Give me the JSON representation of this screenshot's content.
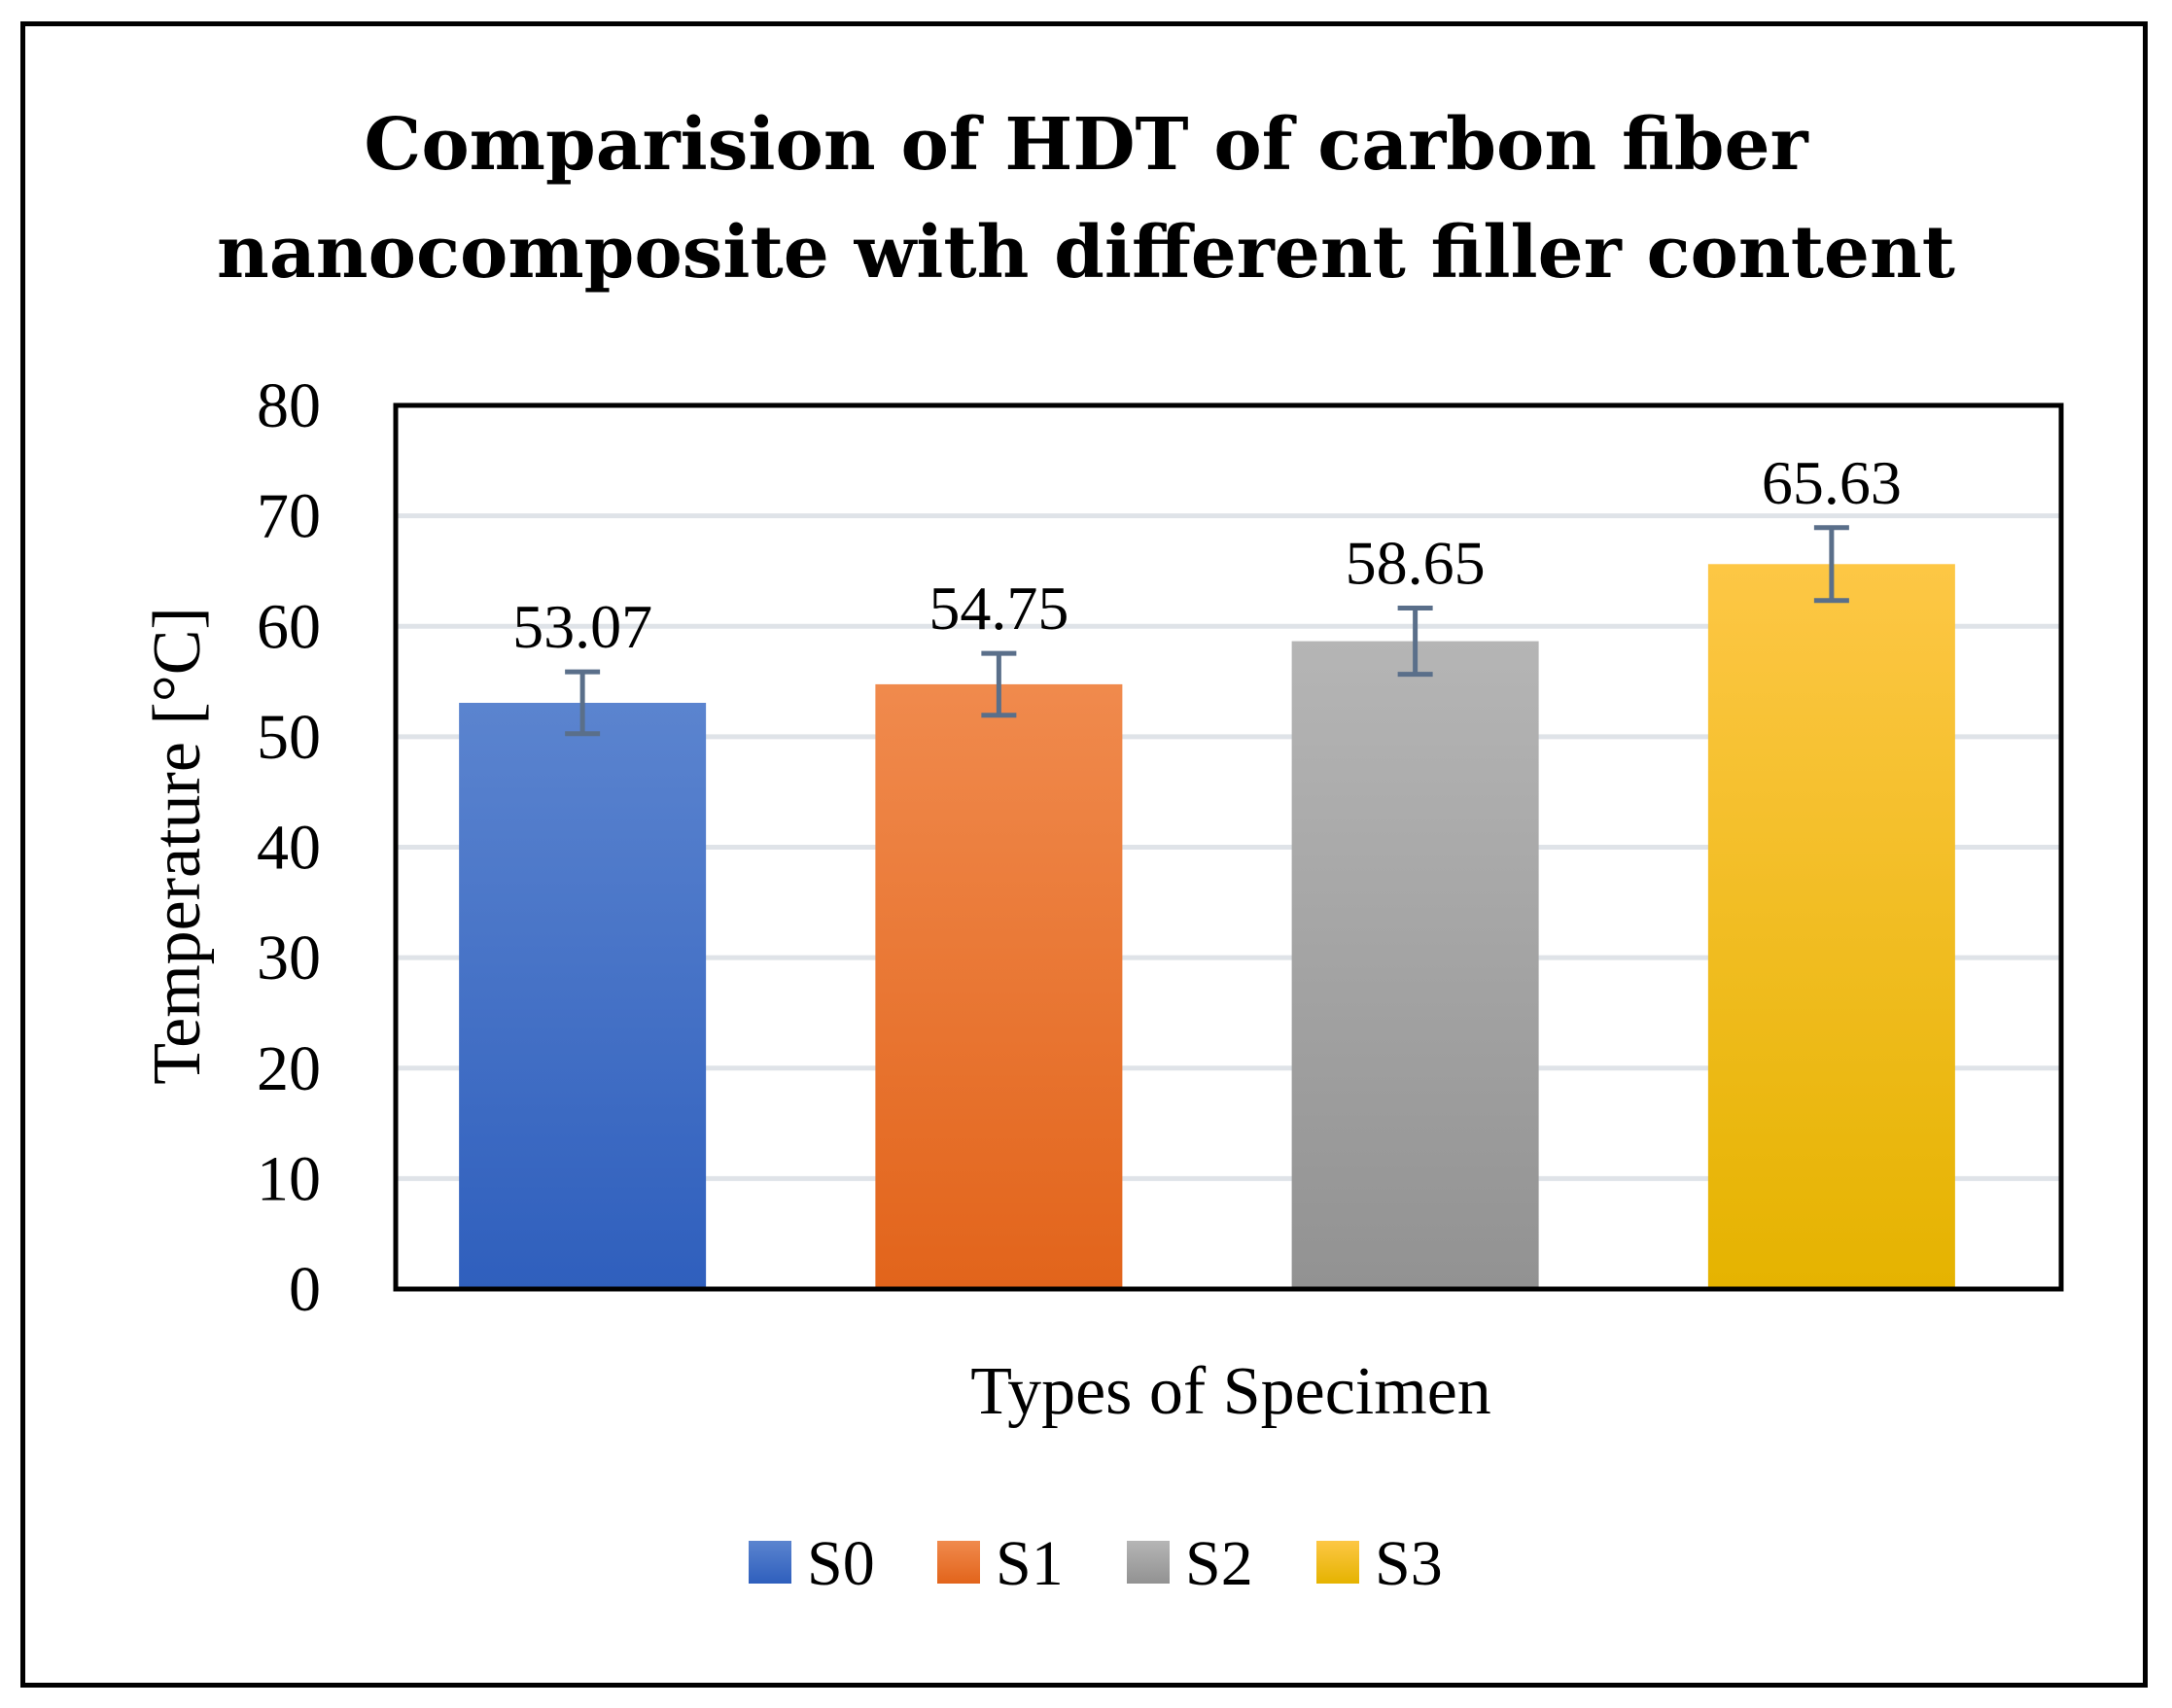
{
  "chart_data": {
    "type": "bar",
    "title": [
      "Comparision of HDT of carbon fiber",
      "nanocomposite with different filler content"
    ],
    "categories": [
      "S0",
      "S1",
      "S2",
      "S3"
    ],
    "values": [
      53.07,
      54.75,
      58.65,
      65.63
    ],
    "error": [
      2.8,
      2.8,
      3.0,
      3.3
    ],
    "data_labels": [
      "53.07",
      "54.75",
      "58.65",
      "65.63"
    ],
    "xlabel": "Types of Specimen",
    "ylabel": "Temperature [°C]",
    "ylim": [
      0,
      80
    ],
    "yticks": [
      "0",
      "10",
      "20",
      "30",
      "40",
      "50",
      "60",
      "70",
      "80"
    ],
    "grid": true,
    "legend_position": "bottom",
    "legend": [
      "S0",
      "S1",
      "S2",
      "S3"
    ],
    "colors": {
      "S0": [
        "#5b84cf",
        "#2f5fbd"
      ],
      "S1": [
        "#f08a4d",
        "#e2641b"
      ],
      "S2": [
        "#b5b5b5",
        "#929292"
      ],
      "S3": [
        "#fdc745",
        "#e5b300"
      ],
      "error_bar": "#5a6f8a",
      "grid": "#dfe3e8"
    }
  }
}
